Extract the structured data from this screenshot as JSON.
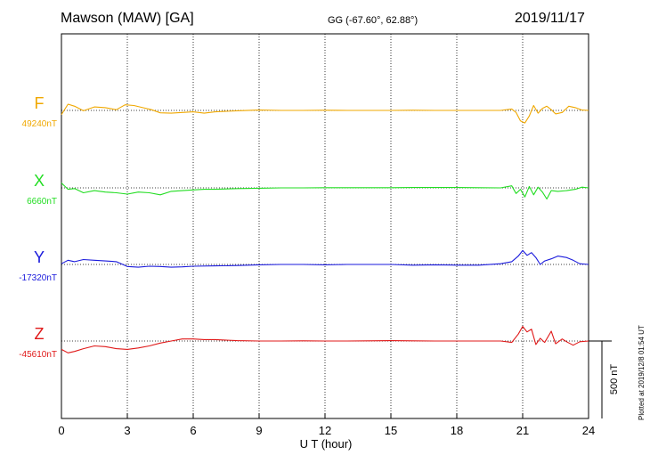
{
  "header": {
    "station": "Mawson (MAW)  [GA]",
    "coords": "GG (-67.60°,  62.88°)",
    "date": "2019/11/17"
  },
  "footer": {
    "plotted": "Plotted at 2019/12/8 01:54 UT"
  },
  "chart_data": {
    "type": "line",
    "xlabel": "U T (hour)",
    "xlim": [
      0,
      24
    ],
    "xticks": [
      0,
      3,
      6,
      9,
      12,
      15,
      18,
      21,
      24
    ],
    "scale_bar": {
      "label": "500 nT",
      "value": 500
    },
    "series": [
      {
        "name": "F",
        "baseline_label": "49240nT",
        "color": "#f0a800",
        "points": [
          [
            0,
            60
          ],
          [
            0.3,
            -90
          ],
          [
            0.6,
            -60
          ],
          [
            1,
            5
          ],
          [
            1.5,
            -50
          ],
          [
            2,
            -40
          ],
          [
            2.5,
            -10
          ],
          [
            2.9,
            -80
          ],
          [
            3.3,
            -70
          ],
          [
            3.7,
            -40
          ],
          [
            4.1,
            -10
          ],
          [
            4.5,
            35
          ],
          [
            5,
            40
          ],
          [
            5.5,
            30
          ],
          [
            6,
            20
          ],
          [
            6.5,
            40
          ],
          [
            7,
            20
          ],
          [
            8,
            5
          ],
          [
            9,
            -5
          ],
          [
            10,
            0
          ],
          [
            11,
            0
          ],
          [
            12,
            -2
          ],
          [
            13,
            0
          ],
          [
            14,
            0
          ],
          [
            15,
            0
          ],
          [
            16,
            -3
          ],
          [
            17,
            0
          ],
          [
            18,
            0
          ],
          [
            19,
            0
          ],
          [
            20,
            0
          ],
          [
            20.5,
            -20
          ],
          [
            20.7,
            30
          ],
          [
            20.9,
            150
          ],
          [
            21.1,
            180
          ],
          [
            21.3,
            80
          ],
          [
            21.5,
            -70
          ],
          [
            21.7,
            40
          ],
          [
            21.9,
            -30
          ],
          [
            22.1,
            -60
          ],
          [
            22.3,
            -10
          ],
          [
            22.5,
            50
          ],
          [
            22.8,
            30
          ],
          [
            23.1,
            -60
          ],
          [
            23.4,
            -40
          ],
          [
            23.7,
            -5
          ],
          [
            24,
            0
          ]
        ]
      },
      {
        "name": "X",
        "baseline_label": "6660nT",
        "color": "#22dd22",
        "points": [
          [
            0,
            -70
          ],
          [
            0.3,
            20
          ],
          [
            0.6,
            10
          ],
          [
            1,
            70
          ],
          [
            1.5,
            40
          ],
          [
            2,
            60
          ],
          [
            2.5,
            70
          ],
          [
            3,
            90
          ],
          [
            3.5,
            60
          ],
          [
            4,
            70
          ],
          [
            4.5,
            100
          ],
          [
            5,
            50
          ],
          [
            5.5,
            40
          ],
          [
            6,
            30
          ],
          [
            6.5,
            20
          ],
          [
            7,
            20
          ],
          [
            8,
            10
          ],
          [
            9,
            5
          ],
          [
            10,
            0
          ],
          [
            11,
            0
          ],
          [
            12,
            -2
          ],
          [
            13,
            -3
          ],
          [
            14,
            -3
          ],
          [
            15,
            -3
          ],
          [
            16,
            -5
          ],
          [
            17,
            -5
          ],
          [
            18,
            -5
          ],
          [
            19,
            -3
          ],
          [
            20,
            0
          ],
          [
            20.5,
            -30
          ],
          [
            20.7,
            80
          ],
          [
            20.9,
            20
          ],
          [
            21.1,
            130
          ],
          [
            21.3,
            -20
          ],
          [
            21.5,
            100
          ],
          [
            21.7,
            -10
          ],
          [
            21.9,
            60
          ],
          [
            22.1,
            160
          ],
          [
            22.3,
            40
          ],
          [
            22.6,
            50
          ],
          [
            23,
            40
          ],
          [
            23.4,
            20
          ],
          [
            23.7,
            -10
          ],
          [
            24,
            0
          ]
        ]
      },
      {
        "name": "Y",
        "baseline_label": "-17320nT",
        "color": "#1a1adc",
        "points": [
          [
            0,
            -10
          ],
          [
            0.3,
            -60
          ],
          [
            0.6,
            -40
          ],
          [
            1,
            -70
          ],
          [
            1.5,
            -60
          ],
          [
            2,
            -50
          ],
          [
            2.5,
            -40
          ],
          [
            3,
            30
          ],
          [
            3.5,
            40
          ],
          [
            4,
            25
          ],
          [
            4.5,
            30
          ],
          [
            5,
            40
          ],
          [
            5.5,
            35
          ],
          [
            6,
            25
          ],
          [
            7,
            20
          ],
          [
            8,
            15
          ],
          [
            9,
            5
          ],
          [
            10,
            0
          ],
          [
            11,
            0
          ],
          [
            12,
            5
          ],
          [
            13,
            0
          ],
          [
            14,
            0
          ],
          [
            15,
            0
          ],
          [
            16,
            10
          ],
          [
            17,
            5
          ],
          [
            18,
            10
          ],
          [
            19,
            10
          ],
          [
            20,
            -10
          ],
          [
            20.5,
            -40
          ],
          [
            20.8,
            -120
          ],
          [
            21,
            -200
          ],
          [
            21.2,
            -130
          ],
          [
            21.4,
            -170
          ],
          [
            21.6,
            -100
          ],
          [
            21.8,
            0
          ],
          [
            22,
            -50
          ],
          [
            22.3,
            -80
          ],
          [
            22.6,
            -120
          ],
          [
            23,
            -100
          ],
          [
            23.3,
            -60
          ],
          [
            23.6,
            -10
          ],
          [
            24,
            0
          ]
        ]
      },
      {
        "name": "Z",
        "baseline_label": "-45610nT",
        "color": "#e01818",
        "points": [
          [
            0,
            120
          ],
          [
            0.3,
            170
          ],
          [
            0.6,
            150
          ],
          [
            1,
            110
          ],
          [
            1.5,
            70
          ],
          [
            2,
            80
          ],
          [
            2.5,
            110
          ],
          [
            3,
            120
          ],
          [
            3.5,
            100
          ],
          [
            4,
            70
          ],
          [
            4.5,
            30
          ],
          [
            5,
            0
          ],
          [
            5.5,
            -30
          ],
          [
            6,
            -30
          ],
          [
            6.5,
            -20
          ],
          [
            7,
            -20
          ],
          [
            8,
            -5
          ],
          [
            9,
            0
          ],
          [
            10,
            0
          ],
          [
            11,
            -2
          ],
          [
            12,
            0
          ],
          [
            13,
            0
          ],
          [
            14,
            -3
          ],
          [
            15,
            -5
          ],
          [
            16,
            -2
          ],
          [
            17,
            0
          ],
          [
            18,
            0
          ],
          [
            19,
            0
          ],
          [
            20,
            0
          ],
          [
            20.5,
            20
          ],
          [
            20.8,
            -100
          ],
          [
            21,
            -210
          ],
          [
            21.2,
            -130
          ],
          [
            21.4,
            -170
          ],
          [
            21.6,
            50
          ],
          [
            21.8,
            -40
          ],
          [
            22,
            20
          ],
          [
            22.3,
            -140
          ],
          [
            22.5,
            40
          ],
          [
            22.8,
            -30
          ],
          [
            23,
            10
          ],
          [
            23.3,
            60
          ],
          [
            23.6,
            10
          ],
          [
            24,
            0
          ]
        ]
      }
    ]
  }
}
